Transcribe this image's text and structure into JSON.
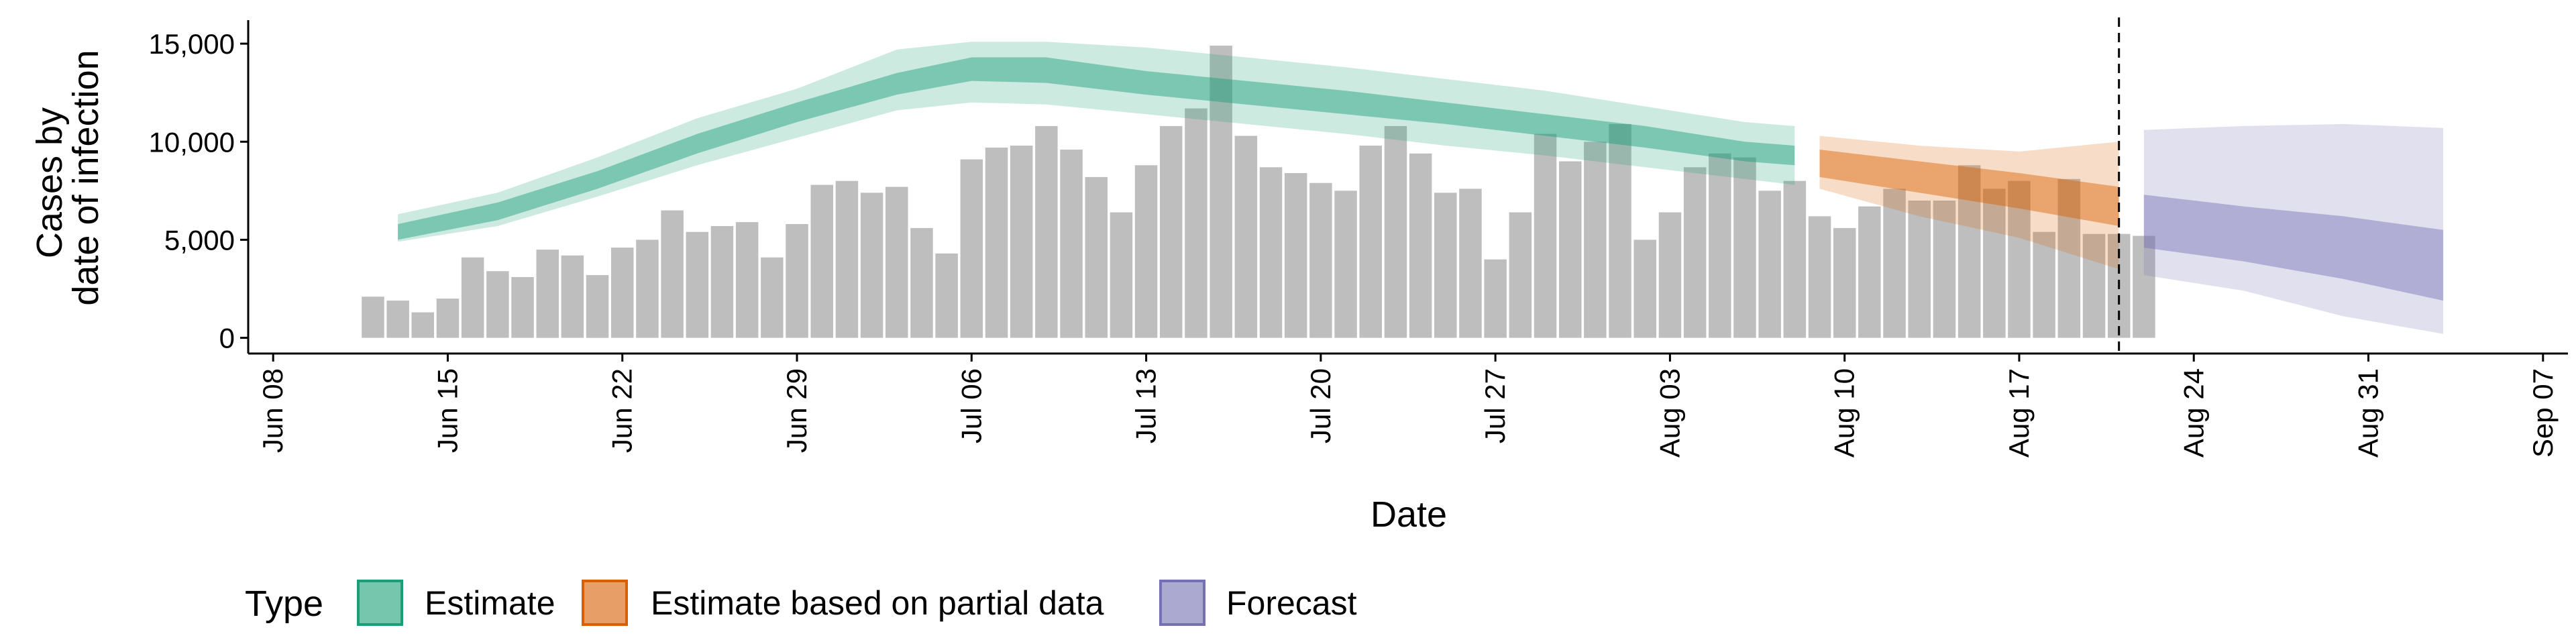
{
  "chart_data": {
    "type": "bar",
    "xlabel": "Date",
    "ylabel": [
      "Cases by",
      "date of infection"
    ],
    "ylim": [
      -800,
      16200
    ],
    "y_ticks": [
      0,
      5000,
      10000,
      15000
    ],
    "y_tick_labels": [
      "0",
      "5,000",
      "10,000",
      "15,000"
    ],
    "x_range": [
      "2020-06-07",
      "2020-09-08"
    ],
    "x_ticks": [
      "2020-06-08",
      "2020-06-15",
      "2020-06-22",
      "2020-06-29",
      "2020-07-06",
      "2020-07-13",
      "2020-07-20",
      "2020-07-27",
      "2020-08-03",
      "2020-08-10",
      "2020-08-17",
      "2020-08-24",
      "2020-08-31",
      "2020-09-07"
    ],
    "x_tick_labels": [
      "Jun 08",
      "Jun 15",
      "Jun 22",
      "Jun 29",
      "Jul 06",
      "Jul 13",
      "Jul 20",
      "Jul 27",
      "Aug 03",
      "Aug 10",
      "Aug 17",
      "Aug 24",
      "Aug 31",
      "Sep 07"
    ],
    "bars": {
      "start": "2020-06-12",
      "values": [
        2100,
        1900,
        1300,
        2000,
        4100,
        3400,
        3100,
        4500,
        4200,
        3200,
        4600,
        5000,
        6500,
        5400,
        5700,
        5900,
        4100,
        5800,
        7800,
        8000,
        7400,
        7700,
        5600,
        4300,
        9100,
        9700,
        9800,
        10800,
        9600,
        8200,
        6400,
        8800,
        10800,
        11700,
        14900,
        10300,
        8700,
        8400,
        7900,
        7500,
        9800,
        10800,
        9400,
        7400,
        7600,
        4000,
        6400,
        10400,
        9000,
        10000,
        10900,
        5000,
        6400,
        8700,
        9400,
        9200,
        7500,
        8000,
        6200,
        5600,
        6700,
        7600,
        7000,
        7000,
        8800,
        7600,
        8000,
        5400,
        8100,
        5300,
        5300,
        5200
      ],
      "color": "#bebebe"
    },
    "vline_date": "2020-08-21",
    "series": [
      {
        "name": "Estimate",
        "color": "#1b9e77",
        "x": [
          "2020-06-13",
          "2020-06-17",
          "2020-06-21",
          "2020-06-25",
          "2020-06-29",
          "2020-07-03",
          "2020-07-06",
          "2020-07-09",
          "2020-07-13",
          "2020-07-17",
          "2020-07-21",
          "2020-07-25",
          "2020-07-29",
          "2020-08-02",
          "2020-08-06",
          "2020-08-08"
        ],
        "median": [
          5400,
          6400,
          8000,
          9900,
          11500,
          12900,
          13700,
          13700,
          13000,
          12500,
          12000,
          11400,
          10800,
          10200,
          9500,
          9300
        ],
        "inner": [
          [
            5000,
            5800
          ],
          [
            6000,
            6900
          ],
          [
            7600,
            8500
          ],
          [
            9400,
            10400
          ],
          [
            11000,
            12000
          ],
          [
            12400,
            13500
          ],
          [
            13100,
            14300
          ],
          [
            13000,
            14300
          ],
          [
            12400,
            13600
          ],
          [
            11900,
            13100
          ],
          [
            11400,
            12600
          ],
          [
            10900,
            12000
          ],
          [
            10300,
            11400
          ],
          [
            9700,
            10800
          ],
          [
            9000,
            10000
          ],
          [
            8800,
            9800
          ]
        ],
        "outer": [
          [
            4900,
            6300
          ],
          [
            5700,
            7400
          ],
          [
            7200,
            9200
          ],
          [
            8800,
            11200
          ],
          [
            10200,
            12700
          ],
          [
            11600,
            14700
          ],
          [
            12000,
            15100
          ],
          [
            11900,
            15100
          ],
          [
            11400,
            14800
          ],
          [
            10900,
            14300
          ],
          [
            10400,
            13800
          ],
          [
            9800,
            13200
          ],
          [
            9300,
            12600
          ],
          [
            8700,
            11800
          ],
          [
            8100,
            11000
          ],
          [
            7800,
            10800
          ]
        ]
      },
      {
        "name": "Estimate based on partial data",
        "color": "#d95f02",
        "x": [
          "2020-08-09",
          "2020-08-13",
          "2020-08-17",
          "2020-08-21"
        ],
        "median": [
          8900,
          8300,
          7700,
          7000
        ],
        "inner": [
          [
            8200,
            9600
          ],
          [
            7400,
            9000
          ],
          [
            6600,
            8400
          ],
          [
            5700,
            7700
          ]
        ],
        "outer": [
          [
            7600,
            10300
          ],
          [
            6200,
            9800
          ],
          [
            5100,
            9500
          ],
          [
            3500,
            10000
          ]
        ]
      },
      {
        "name": "Forecast",
        "color": "#7570b3",
        "x": [
          "2020-08-22",
          "2020-08-26",
          "2020-08-30",
          "2020-09-03"
        ],
        "median": [
          5800,
          5100,
          4400,
          3700
        ],
        "inner": [
          [
            4600,
            7300
          ],
          [
            3900,
            6700
          ],
          [
            3000,
            6200
          ],
          [
            1900,
            5500
          ]
        ],
        "outer": [
          [
            3200,
            10600
          ],
          [
            2400,
            10800
          ],
          [
            1100,
            10900
          ],
          [
            200,
            10700
          ]
        ]
      }
    ],
    "legend": {
      "title": "Type",
      "position": "bottom",
      "items": [
        "Estimate",
        "Estimate based on partial data",
        "Forecast"
      ]
    }
  }
}
